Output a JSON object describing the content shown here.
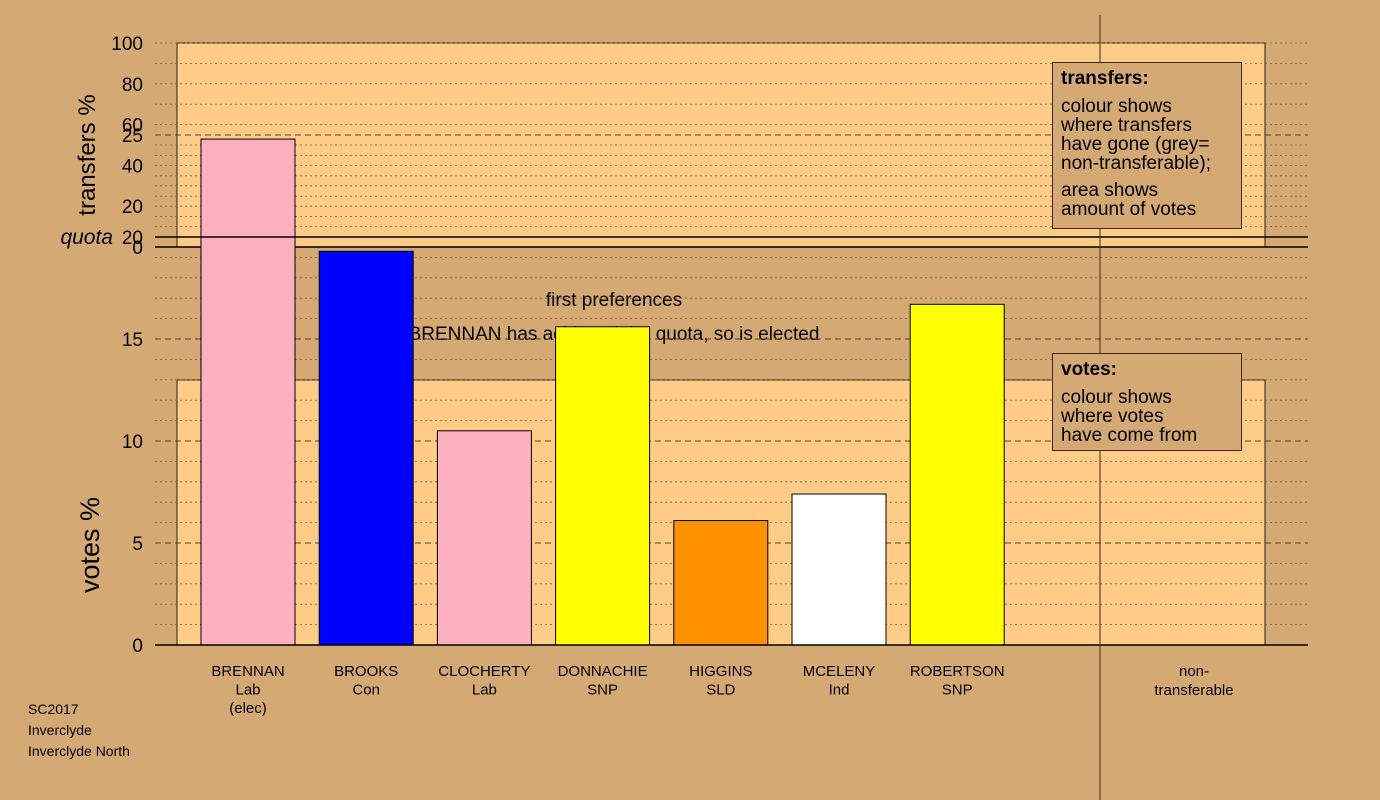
{
  "top_panel": {
    "ylabel": "transfers %",
    "yticks": [
      0,
      20,
      40,
      60,
      80,
      100
    ]
  },
  "subtitle": "first preferences",
  "headline": "BRENNAN has achieved the quota, so is elected",
  "legend_transfers": {
    "title": "transfers:",
    "line1": "colour shows",
    "line2": "where transfers",
    "line3": "have gone (grey=",
    "line4": "non-transferable);",
    "line5": "area shows",
    "line6": "amount of votes"
  },
  "legend_votes": {
    "title": "votes:",
    "line1": "colour shows",
    "line2": "where votes",
    "line3": "have come from"
  },
  "chart_data": {
    "type": "bar",
    "ylabel": "votes %",
    "ylim": [
      0,
      26
    ],
    "yticks": [
      0,
      5,
      10,
      15,
      20,
      25
    ],
    "quota": 20,
    "quota_label": "quota",
    "grid": true,
    "candidates": [
      {
        "name": "BRENNAN",
        "party": "Lab",
        "note": "(elec)",
        "value": 24.8,
        "color": "#ffb0c0"
      },
      {
        "name": "BROOKS",
        "party": "Con",
        "note": "",
        "value": 19.3,
        "color": "#0000ff"
      },
      {
        "name": "CLOCHERTY",
        "party": "Lab",
        "note": "",
        "value": 10.5,
        "color": "#ffb0c0"
      },
      {
        "name": "DONNACHIE",
        "party": "SNP",
        "note": "",
        "value": 15.6,
        "color": "#ffff00"
      },
      {
        "name": "HIGGINS",
        "party": "SLD",
        "note": "",
        "value": 6.1,
        "color": "#ff9000"
      },
      {
        "name": "MCELENY",
        "party": "Ind",
        "note": "",
        "value": 7.4,
        "color": "#ffffff"
      },
      {
        "name": "ROBERTSON",
        "party": "SNP",
        "note": "",
        "value": 16.7,
        "color": "#ffff00"
      }
    ],
    "nontransferable_label1": "non-",
    "nontransferable_label2": "transferable"
  },
  "colors": {
    "background": "#d4a973",
    "plot_fill": "#ffcc88"
  },
  "footer": {
    "line1": "SC2017",
    "line2": "Inverclyde",
    "line3": "Inverclyde North"
  }
}
